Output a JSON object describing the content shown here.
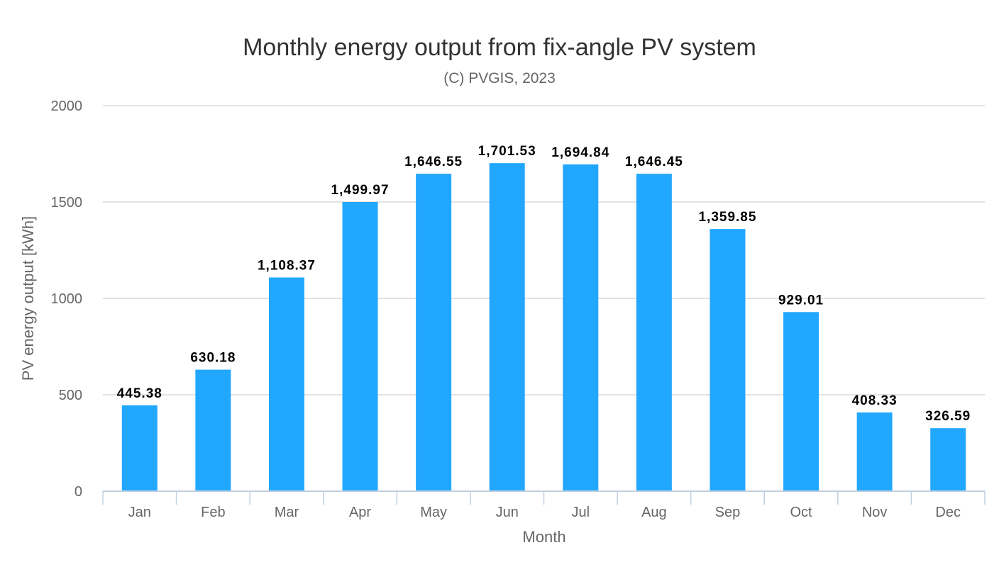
{
  "chart_data": {
    "type": "bar",
    "title": "Monthly energy output from fix-angle PV system",
    "subtitle": "(C) PVGIS, 2023",
    "xlabel": "Month",
    "ylabel": "PV energy output [kWh]",
    "categories": [
      "Jan",
      "Feb",
      "Mar",
      "Apr",
      "May",
      "Jun",
      "Jul",
      "Aug",
      "Sep",
      "Oct",
      "Nov",
      "Dec"
    ],
    "values": [
      445.38,
      630.18,
      1108.37,
      1499.97,
      1646.55,
      1701.53,
      1694.84,
      1646.45,
      1359.85,
      929.01,
      408.33,
      326.59
    ],
    "data_labels": [
      "445.38",
      "630.18",
      "1,108.37",
      "1,499.97",
      "1,646.55",
      "1,701.53",
      "1,694.84",
      "1,646.45",
      "1,359.85",
      "929.01",
      "408.33",
      "326.59"
    ],
    "yticks": [
      0,
      500,
      1000,
      1500,
      2000
    ],
    "ytick_labels": [
      "0",
      "500",
      "1000",
      "1500",
      "2000"
    ],
    "ylim": [
      0,
      2000
    ],
    "grid": true,
    "legend": "none",
    "colors": {
      "bar": "#22a7fe",
      "grid": "#d8d8d8",
      "axis": "#c0d0e0"
    }
  }
}
